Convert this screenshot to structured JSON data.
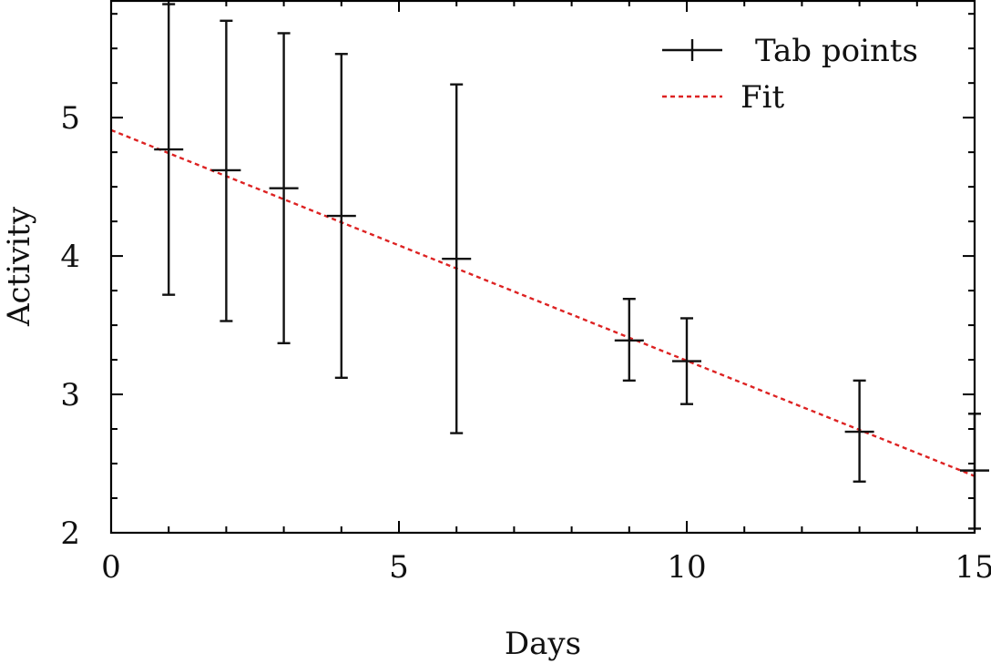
{
  "chart_data": {
    "type": "scatter",
    "title": "",
    "xlabel": "Days",
    "ylabel": "Activity",
    "xlim": [
      0,
      15
    ],
    "ylim": [
      2,
      5.85
    ],
    "xticks": [
      0,
      5,
      10,
      15
    ],
    "yticks": [
      2,
      3,
      4,
      5
    ],
    "x_minor_step": 1,
    "y_minor_step": 0.25,
    "grid": false,
    "legend_position": "top-right",
    "series": [
      {
        "name": "Tab points",
        "style": "errorbar",
        "color": "#111111",
        "points": [
          {
            "x": 1,
            "y": 4.77,
            "ylow": 3.72,
            "yhigh": 5.82
          },
          {
            "x": 2,
            "y": 4.62,
            "ylow": 3.53,
            "yhigh": 5.7
          },
          {
            "x": 3,
            "y": 4.49,
            "ylow": 3.37,
            "yhigh": 5.61
          },
          {
            "x": 4,
            "y": 4.29,
            "ylow": 3.12,
            "yhigh": 5.46
          },
          {
            "x": 6,
            "y": 3.98,
            "ylow": 2.72,
            "yhigh": 5.24
          },
          {
            "x": 9,
            "y": 3.39,
            "ylow": 3.1,
            "yhigh": 3.69
          },
          {
            "x": 10,
            "y": 3.24,
            "ylow": 2.93,
            "yhigh": 3.55
          },
          {
            "x": 13,
            "y": 2.73,
            "ylow": 2.37,
            "yhigh": 3.1
          },
          {
            "x": 15,
            "y": 2.45,
            "ylow": 2.03,
            "yhigh": 2.86
          }
        ]
      },
      {
        "name": "Fit",
        "style": "dashed-line",
        "color": "#dd2222",
        "x": [
          0,
          15
        ],
        "y": [
          4.91,
          2.41
        ]
      }
    ]
  }
}
